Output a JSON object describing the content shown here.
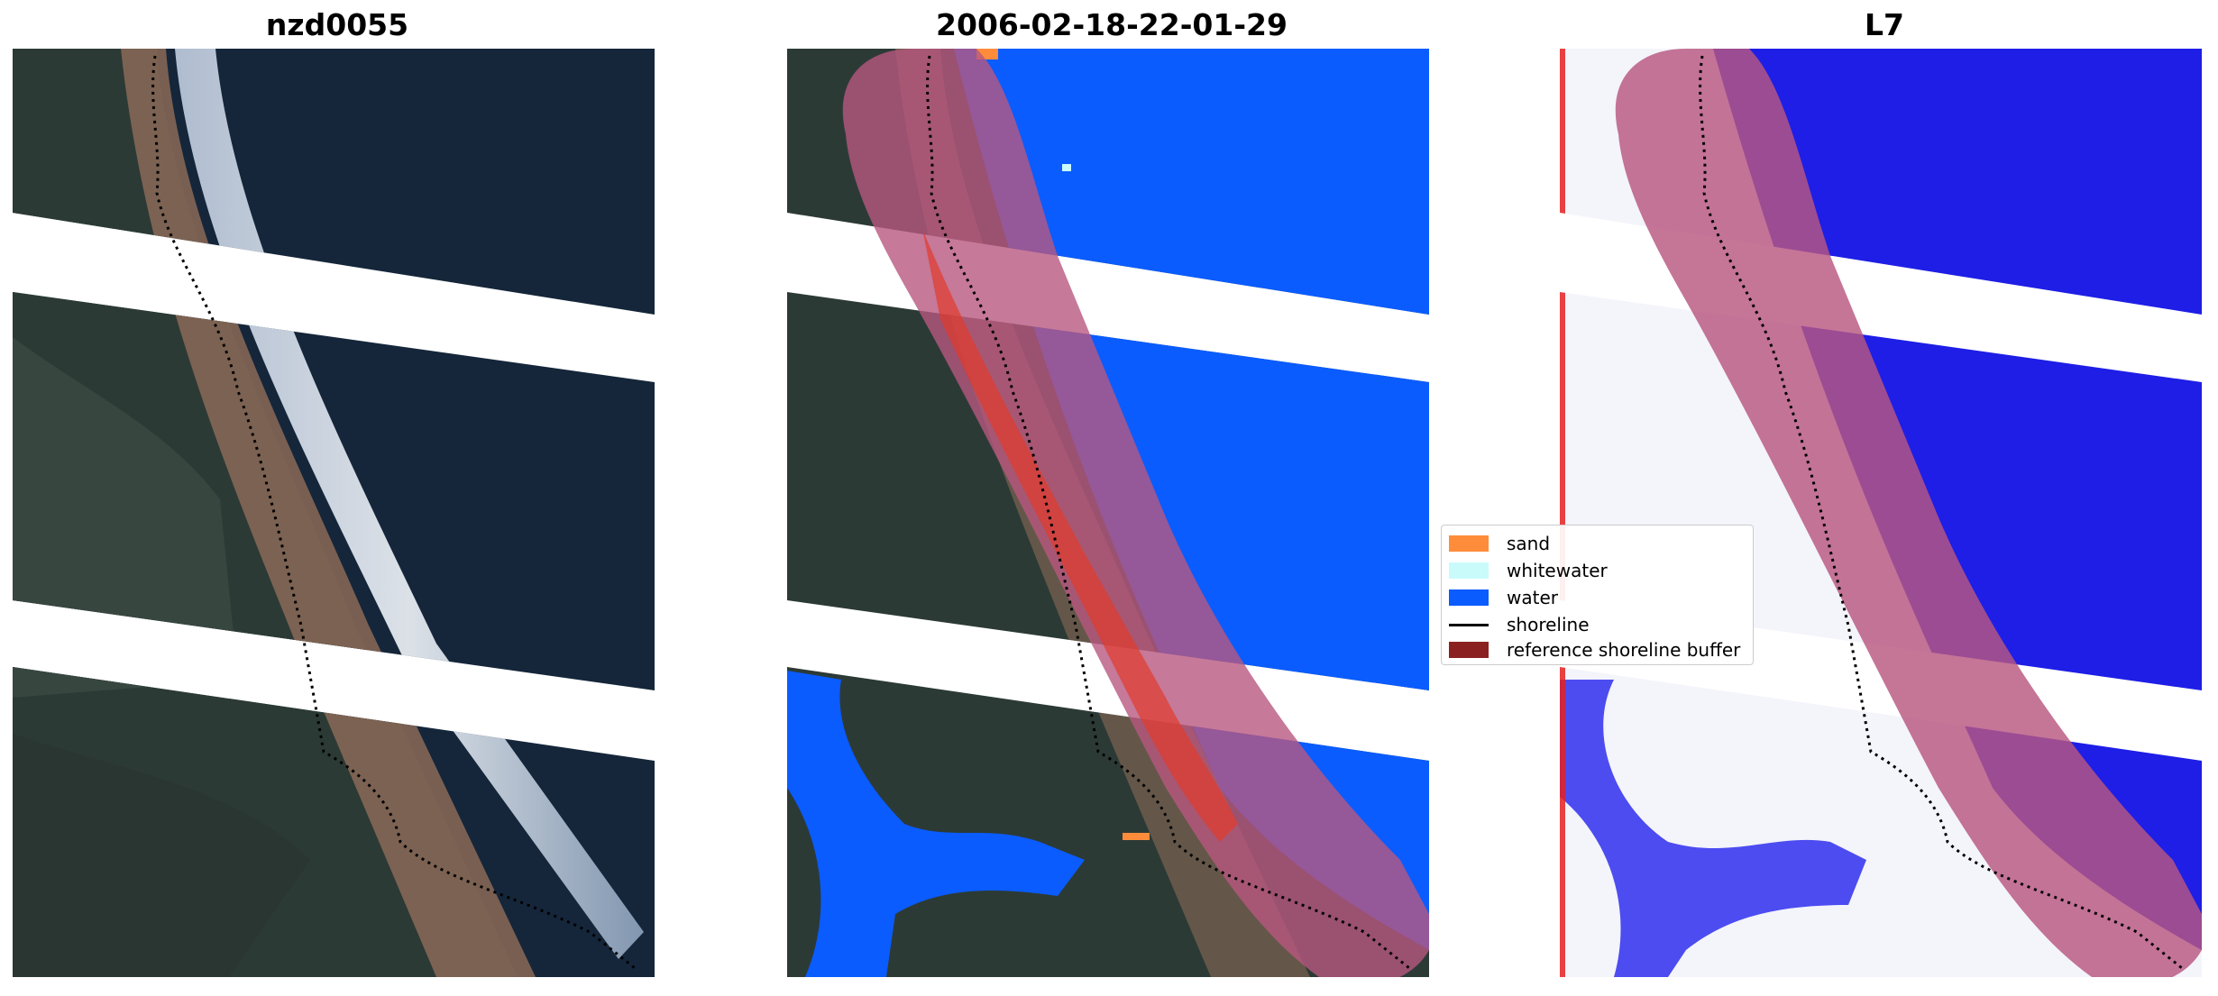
{
  "panels": [
    {
      "id": "rgb",
      "title": "nzd0055"
    },
    {
      "id": "classification",
      "title": "2006-02-18-22-01-29"
    },
    {
      "id": "index",
      "title": "L7"
    }
  ],
  "legend": {
    "items": [
      {
        "label": "sand",
        "color": "#ff8c3a",
        "kind": "patch"
      },
      {
        "label": "whitewater",
        "color": "#c9fbfb",
        "kind": "patch"
      },
      {
        "label": "water",
        "color": "#0a5cff",
        "kind": "patch"
      },
      {
        "label": "shoreline",
        "color": "#000000",
        "kind": "line"
      },
      {
        "label": "reference shoreline buffer",
        "color": "#8b2020",
        "kind": "patch"
      }
    ]
  },
  "colors": {
    "land_dark": "#2c3a36",
    "land_brown": "#8b6a57",
    "ocean_dark": "#15263a",
    "surf_white": "#dfe8f4",
    "water_blue": "#0a5cff",
    "buffer_magenta": "#b8577f",
    "index_blue": "#1e1ee6",
    "index_red": "#e62020"
  }
}
